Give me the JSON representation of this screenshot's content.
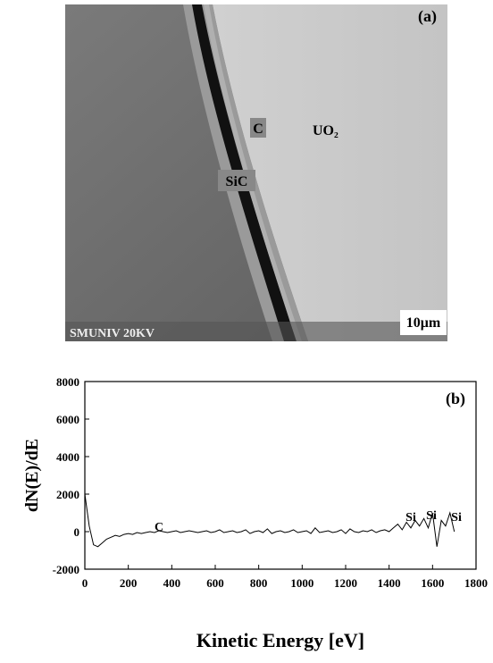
{
  "panel_a": {
    "label": "(a)",
    "c_label": "C",
    "uo2_label": "UO₂",
    "sic_label": "SiC",
    "footer": "SMUNIV  20KV",
    "scale": "10μm"
  },
  "chart_data": {
    "type": "line",
    "panel_label": "(b)",
    "ylabel": "dN(E)/dE",
    "xlabel": "Kinetic Energy [eV]",
    "annotations": [
      "C",
      "Si",
      "Si",
      "Si"
    ],
    "color": "#000000",
    "x": [
      0,
      20,
      40,
      60,
      80,
      100,
      120,
      140,
      160,
      180,
      200,
      220,
      240,
      260,
      280,
      300,
      320,
      340,
      360,
      380,
      400,
      420,
      440,
      460,
      480,
      500,
      520,
      540,
      560,
      580,
      600,
      620,
      640,
      660,
      680,
      700,
      720,
      740,
      760,
      780,
      800,
      820,
      840,
      860,
      880,
      900,
      920,
      940,
      960,
      980,
      1000,
      1020,
      1040,
      1060,
      1080,
      1100,
      1120,
      1140,
      1160,
      1180,
      1200,
      1220,
      1240,
      1260,
      1280,
      1300,
      1320,
      1340,
      1360,
      1380,
      1400,
      1420,
      1440,
      1460,
      1480,
      1500,
      1520,
      1540,
      1560,
      1580,
      1600,
      1620,
      1640,
      1660,
      1680,
      1700
    ],
    "values": [
      2000,
      300,
      -700,
      -800,
      -600,
      -400,
      -300,
      -200,
      -250,
      -150,
      -100,
      -150,
      -50,
      -100,
      -50,
      0,
      -50,
      50,
      0,
      -50,
      0,
      50,
      -50,
      0,
      50,
      0,
      -50,
      0,
      50,
      -50,
      0,
      100,
      -50,
      0,
      50,
      -50,
      0,
      100,
      -100,
      0,
      50,
      -50,
      150,
      -100,
      0,
      50,
      -50,
      0,
      100,
      -50,
      0,
      50,
      -100,
      200,
      -50,
      0,
      50,
      -50,
      0,
      100,
      -100,
      150,
      0,
      -50,
      50,
      0,
      100,
      -50,
      50,
      100,
      0,
      200,
      400,
      100,
      500,
      200,
      600,
      300,
      700,
      200,
      1000,
      -800,
      600,
      300,
      1000,
      0
    ],
    "xlim": [
      0,
      1800
    ],
    "xticks": [
      0,
      200,
      400,
      600,
      800,
      1000,
      1200,
      1400,
      1600,
      1800
    ],
    "ylim": [
      -2000,
      8000
    ],
    "yticks": [
      -2000,
      0,
      2000,
      4000,
      6000,
      8000
    ]
  }
}
